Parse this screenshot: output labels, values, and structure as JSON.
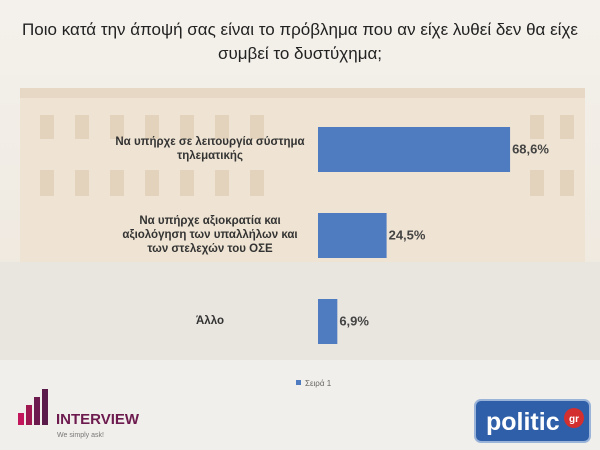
{
  "chart_data": {
    "type": "barh",
    "title": "Ποιο κατά την άποψή σας είναι το πρόβλημα που αν είχε λυθεί δεν θα είχε συμβεί το δυστύχημα;",
    "categories": [
      "Να υπήρχε σε λειτουργία σύστημα τηλεματικής",
      "Να υπήρχε αξιοκρατία και αξιολόγηση των υπαλλήλων και των στελεχών του ΟΣΕ",
      "Άλλο"
    ],
    "series": [
      {
        "name": "Σειρά 1",
        "color": "#4f7cc0",
        "values": [
          68.6,
          24.5,
          6.9
        ],
        "value_labels": [
          "68,6%",
          "24,5%",
          "6,9%"
        ]
      }
    ],
    "xlim": [
      0,
      100
    ],
    "legend": "bottom"
  },
  "logos": {
    "interview": {
      "name": "INTERVIEW",
      "tagline": "We simply ask!"
    },
    "politic": {
      "name": "politic",
      "suffix": "gr"
    }
  }
}
